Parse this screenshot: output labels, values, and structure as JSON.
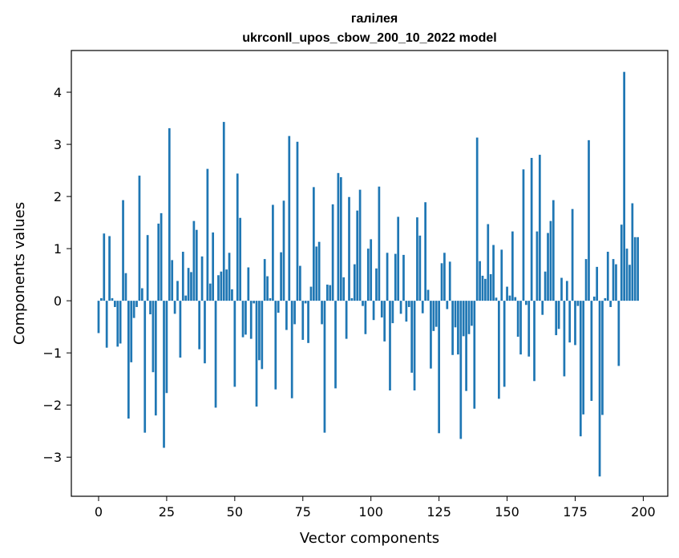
{
  "chart_data": {
    "type": "bar",
    "title": "галілея",
    "subtitle": "ukrconll_upos_cbow_200_10_2022 model",
    "xlabel": "Vector components",
    "ylabel": "Components values",
    "xlim": [
      -10,
      209
    ],
    "ylim": [
      -3.75,
      4.8
    ],
    "xticks": [
      0,
      25,
      50,
      75,
      100,
      125,
      150,
      175,
      200
    ],
    "yticks": [
      -3,
      -2,
      -1,
      0,
      1,
      2,
      3,
      4
    ],
    "ytick_labels": [
      "−3",
      "−2",
      "−1",
      "0",
      "1",
      "2",
      "3",
      "4"
    ],
    "bar_color": "#1f77b4",
    "grid": false,
    "series": [
      {
        "values": [
          -0.62,
          0.05,
          1.29,
          -0.9,
          1.24,
          0.05,
          -0.12,
          -0.88,
          -0.82,
          1.93,
          0.53,
          -2.26,
          -1.18,
          -0.33,
          -0.12,
          2.4,
          0.24,
          -2.53,
          1.26,
          -0.26,
          -1.37,
          -2.2,
          1.48,
          1.68,
          -2.82,
          -1.77,
          3.31,
          0.78,
          -0.25,
          0.38,
          -1.09,
          0.94,
          0.1,
          0.63,
          0.55,
          1.53,
          1.36,
          -0.93,
          0.85,
          -1.2,
          2.53,
          0.33,
          1.31,
          -2.05,
          0.49,
          0.56,
          3.43,
          0.6,
          0.92,
          0.22,
          -1.65,
          2.44,
          1.59,
          -0.7,
          -0.65,
          0.64,
          -0.73,
          -0.05,
          -2.03,
          -1.14,
          -1.31,
          0.8,
          0.47,
          0.05,
          1.84,
          -1.7,
          -0.23,
          0.93,
          1.92,
          -0.56,
          3.16,
          -1.87,
          -0.45,
          3.05,
          0.67,
          -0.75,
          -0.05,
          -0.81,
          0.27,
          2.18,
          1.04,
          1.13,
          -0.45,
          -2.53,
          0.31,
          0.3,
          1.85,
          -1.68,
          2.45,
          2.37,
          0.45,
          -0.73,
          1.99,
          0.05,
          0.7,
          1.73,
          2.13,
          -0.1,
          -0.64,
          1.0,
          1.18,
          -0.37,
          0.62,
          2.19,
          -0.32,
          -0.78,
          0.92,
          -1.72,
          -0.43,
          0.9,
          1.61,
          -0.25,
          0.88,
          -0.4,
          -0.12,
          -1.38,
          -1.72,
          1.6,
          1.25,
          -0.24,
          1.89,
          0.21,
          -1.3,
          -0.58,
          -0.5,
          -2.54,
          0.72,
          0.92,
          -0.16,
          0.75,
          -1.04,
          -0.51,
          -1.03,
          -2.65,
          -0.68,
          -1.73,
          -0.64,
          -0.48,
          -2.07,
          3.13,
          0.76,
          0.48,
          0.42,
          1.47,
          0.51,
          1.07,
          0.06,
          -1.88,
          0.98,
          -1.65,
          0.27,
          0.1,
          1.33,
          0.07,
          -0.69,
          -1.03,
          2.52,
          -0.08,
          -1.07,
          2.74,
          -1.54,
          1.33,
          2.8,
          -0.27,
          0.56,
          1.3,
          1.53,
          1.93,
          -0.66,
          -0.54,
          0.44,
          -1.45,
          0.38,
          -0.8,
          1.76,
          -0.85,
          -0.1,
          -2.6,
          -2.18,
          0.8,
          3.08,
          -1.92,
          0.08,
          0.65,
          -3.37,
          -2.19,
          0.05,
          0.94,
          -0.12,
          0.8,
          0.7,
          -1.25,
          1.46,
          4.39,
          1.0,
          0.69,
          1.87,
          1.22,
          1.22
        ]
      }
    ]
  }
}
